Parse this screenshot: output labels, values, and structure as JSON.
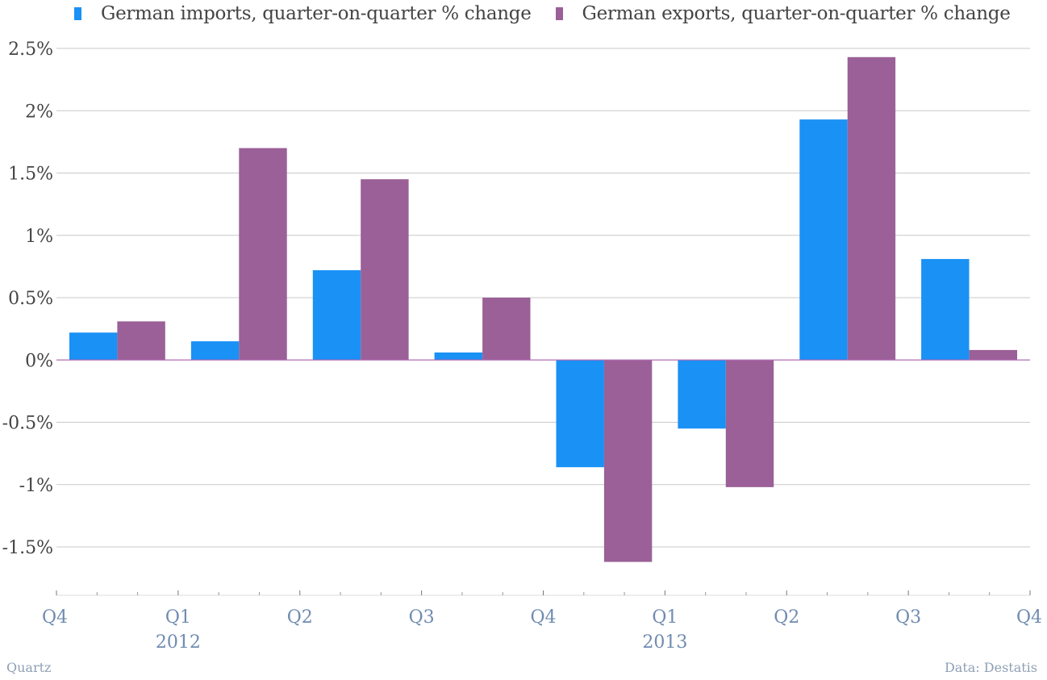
{
  "colors": {
    "imports": "#1a91f5",
    "exports": "#9a6097",
    "grid": "#c9c9c9",
    "zero_line": "#b36bb5",
    "tick_label": "#6f8bb0",
    "y_label": "#444444"
  },
  "legend": {
    "imports_label": "German imports, quarter-on-quarter % change",
    "exports_label": "German exports, quarter-on-quarter % change"
  },
  "footer": {
    "source_left": "Quartz",
    "source_right": "Data: Destatis"
  },
  "chart_data": {
    "type": "bar",
    "title": "",
    "categories": [
      "2011 Q4",
      "2012 Q1",
      "2012 Q2",
      "2012 Q3",
      "2012 Q4",
      "2013 Q1",
      "2013 Q2",
      "2013 Q3"
    ],
    "series": [
      {
        "name": "German imports, quarter-on-quarter % change",
        "values": [
          0.22,
          0.15,
          0.72,
          0.06,
          -0.86,
          -0.55,
          1.93,
          0.81
        ]
      },
      {
        "name": "German exports, quarter-on-quarter % change",
        "values": [
          0.31,
          1.7,
          1.45,
          0.5,
          -1.62,
          -1.02,
          2.43,
          0.08
        ]
      }
    ],
    "ylim": [
      -1.85,
      2.5
    ],
    "yticks": [
      2.5,
      2,
      1.5,
      1,
      0.5,
      0,
      -0.5,
      -1,
      -1.5
    ],
    "ytick_labels": [
      "2.5%",
      "2%",
      "1.5%",
      "1%",
      "0.5%",
      "0%",
      "-0.5%",
      "-1%",
      "-1.5%"
    ],
    "xtick_labels": [
      "Q4",
      "Q1",
      "Q2",
      "Q3",
      "Q4",
      "Q1",
      "Q2",
      "Q3",
      "Q4"
    ],
    "year_labels": [
      {
        "label": "2012",
        "at_tick": 1
      },
      {
        "label": "2013",
        "at_tick": 5
      }
    ],
    "grid": true,
    "legend_position": "top"
  }
}
